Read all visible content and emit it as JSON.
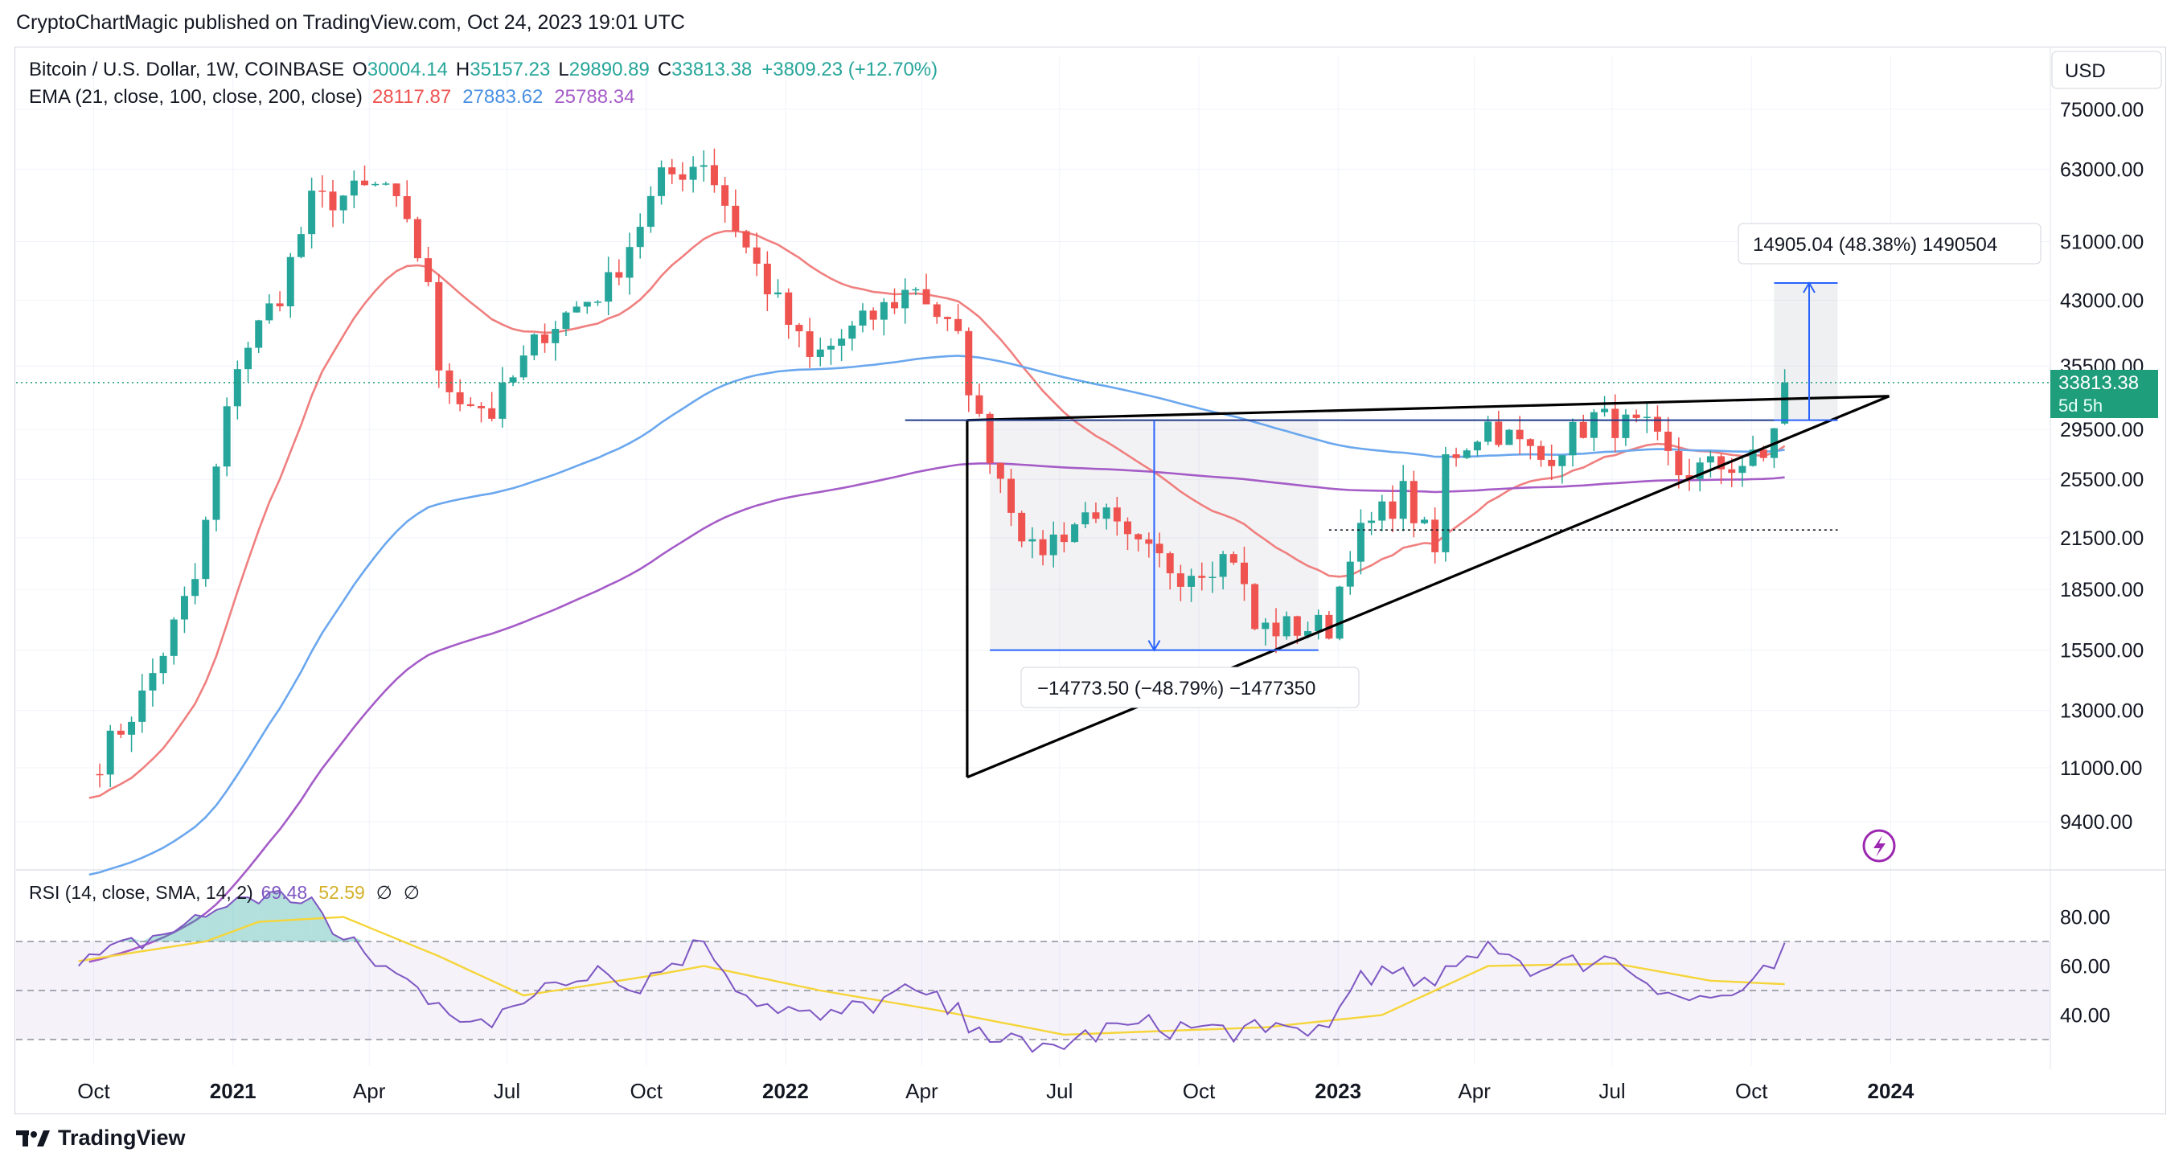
{
  "header": {
    "published_line": "CryptoChartMagic published on TradingView.com, Oct 24, 2023 19:01 UTC"
  },
  "legend": {
    "symbol": "Bitcoin / U.S. Dollar, 1W, COINBASE",
    "o_label": "O",
    "o_value": "30004.14",
    "h_label": "H",
    "h_value": "35157.23",
    "l_label": "L",
    "l_value": "29890.89",
    "c_label": "C",
    "c_value": "33813.38",
    "change": "+3809.23 (+12.70%)",
    "ema_label": "EMA (21, close, 100, close, 200, close)",
    "ema21": "28117.87",
    "ema100": "27883.62",
    "ema200": "25788.34"
  },
  "rsi_legend": {
    "label": "RSI (14, close, SMA, 14, 2)",
    "rsi": "69.48",
    "sma": "52.59",
    "extra1": "∅",
    "extra2": "∅"
  },
  "currency_button": "USD",
  "price_badge": {
    "price": "33813.38",
    "countdown": "5d 5h"
  },
  "annotations": {
    "up_measure": "14905.04 (48.38%) 1490504",
    "down_measure": "−14773.50 (−48.79%) −1477350"
  },
  "brand": "TradingView",
  "colors": {
    "up": "#26a69a",
    "down": "#ef5350",
    "ema21": "#f07f7f",
    "ema100": "#6aa7ee",
    "ema200": "#a55cc7",
    "rsi": "#7e57c2",
    "rsi_sma": "#f5d53a",
    "badge": "#1f9e7c"
  },
  "icons": {
    "flash": "lightning-icon",
    "logo": "tradingview-logo-icon"
  },
  "chart_data": [
    {
      "type": "candlestick",
      "title": "Bitcoin / U.S. Dollar, 1W, COINBASE",
      "x_axis_labels": [
        "Oct",
        "2021",
        "Apr",
        "Jul",
        "Oct",
        "2022",
        "Apr",
        "Jul",
        "Oct",
        "2023",
        "Apr",
        "Jul",
        "Oct",
        "2024"
      ],
      "y_axis_labels": [
        "75000.00",
        "63000.00",
        "51000.00",
        "43000.00",
        "35500.00",
        "29500.00",
        "25500.00",
        "21500.00",
        "18500.00",
        "15500.00",
        "13000.00",
        "11000.00",
        "9400.00"
      ],
      "y_scale": "log",
      "close_anchors": [
        {
          "x": "2020-09-28",
          "y": 10800
        },
        {
          "x": "2020-11-02",
          "y": 13500
        },
        {
          "x": "2020-12-07",
          "y": 19000
        },
        {
          "x": "2021-01-04",
          "y": 36000
        },
        {
          "x": "2021-02-01",
          "y": 44000
        },
        {
          "x": "2021-02-22",
          "y": 57000
        },
        {
          "x": "2021-04-12",
          "y": 60000
        },
        {
          "x": "2021-05-10",
          "y": 46000
        },
        {
          "x": "2021-05-17",
          "y": 34000
        },
        {
          "x": "2021-06-21",
          "y": 31000
        },
        {
          "x": "2021-07-26",
          "y": 39500
        },
        {
          "x": "2021-09-06",
          "y": 45000
        },
        {
          "x": "2021-10-11",
          "y": 61000
        },
        {
          "x": "2021-11-08",
          "y": 65000
        },
        {
          "x": "2021-12-06",
          "y": 50000
        },
        {
          "x": "2022-01-17",
          "y": 36000
        },
        {
          "x": "2022-02-28",
          "y": 41000
        },
        {
          "x": "2022-03-28",
          "y": 45000
        },
        {
          "x": "2022-04-25",
          "y": 38000
        },
        {
          "x": "2022-05-09",
          "y": 30000
        },
        {
          "x": "2022-06-13",
          "y": 20500
        },
        {
          "x": "2022-07-25",
          "y": 23500
        },
        {
          "x": "2022-08-15",
          "y": 21000
        },
        {
          "x": "2022-09-19",
          "y": 19500
        },
        {
          "x": "2022-10-24",
          "y": 20500
        },
        {
          "x": "2022-11-07",
          "y": 16500
        },
        {
          "x": "2022-12-26",
          "y": 16600
        },
        {
          "x": "2023-01-09",
          "y": 21000
        },
        {
          "x": "2023-02-13",
          "y": 24500
        },
        {
          "x": "2023-03-06",
          "y": 20500
        },
        {
          "x": "2023-03-13",
          "y": 27000
        },
        {
          "x": "2023-04-10",
          "y": 30000
        },
        {
          "x": "2023-05-15",
          "y": 27000
        },
        {
          "x": "2023-06-19",
          "y": 30500
        },
        {
          "x": "2023-07-24",
          "y": 29300
        },
        {
          "x": "2023-08-14",
          "y": 26000
        },
        {
          "x": "2023-09-11",
          "y": 26500
        },
        {
          "x": "2023-10-09",
          "y": 27000
        },
        {
          "x": "2023-10-16",
          "y": 30000
        },
        {
          "x": "2023-10-23",
          "y": 33813.38
        }
      ],
      "last_candle": {
        "open": 30004.14,
        "high": 35157.23,
        "low": 29890.89,
        "close": 33813.38
      },
      "ema_series": [
        {
          "name": "EMA 21",
          "last": 28117.87
        },
        {
          "name": "EMA 100",
          "last": 27883.62
        },
        {
          "name": "EMA 200",
          "last": 25788.34
        }
      ],
      "drawings": {
        "resistance_level": 30300,
        "dotted_level": 22000,
        "triangle": [
          {
            "x": "2022-05-01",
            "y": 30300
          },
          {
            "x": "2022-05-01",
            "y": 10700
          },
          {
            "x": "2023-12-31",
            "y": 32500
          }
        ],
        "up_measure": {
          "from": 30300,
          "to": 45200,
          "text": "14905.04 (48.38%) 1490504"
        },
        "down_measure": {
          "from": 30300,
          "to": 15500,
          "text": "−14773.50 (−48.79%) −1477350"
        }
      }
    },
    {
      "type": "line",
      "title": "RSI (14, close, SMA, 14, 2)",
      "y_axis_labels": [
        "80.00",
        "60.00",
        "40.00"
      ],
      "bands": {
        "upper": 70,
        "middle": 50,
        "lower": 30
      },
      "series": [
        {
          "name": "RSI",
          "last": 69.48,
          "anchors": [
            {
              "x": "2020-09-21",
              "y": 60
            },
            {
              "x": "2020-12-14",
              "y": 80
            },
            {
              "x": "2021-01-04",
              "y": 88
            },
            {
              "x": "2021-02-22",
              "y": 88
            },
            {
              "x": "2021-03-08",
              "y": 73
            },
            {
              "x": "2021-05-17",
              "y": 45
            },
            {
              "x": "2021-06-21",
              "y": 35
            },
            {
              "x": "2021-07-26",
              "y": 53
            },
            {
              "x": "2021-08-30",
              "y": 60
            },
            {
              "x": "2021-09-20",
              "y": 50
            },
            {
              "x": "2021-11-08",
              "y": 70
            },
            {
              "x": "2021-12-06",
              "y": 48
            },
            {
              "x": "2022-01-24",
              "y": 38
            },
            {
              "x": "2022-03-28",
              "y": 50
            },
            {
              "x": "2022-05-09",
              "y": 35
            },
            {
              "x": "2022-06-13",
              "y": 25
            },
            {
              "x": "2022-08-15",
              "y": 36
            },
            {
              "x": "2022-11-14",
              "y": 33
            },
            {
              "x": "2022-12-26",
              "y": 35
            },
            {
              "x": "2023-01-16",
              "y": 58
            },
            {
              "x": "2023-03-06",
              "y": 52
            },
            {
              "x": "2023-04-10",
              "y": 70
            },
            {
              "x": "2023-05-15",
              "y": 58
            },
            {
              "x": "2023-06-26",
              "y": 64
            },
            {
              "x": "2023-08-21",
              "y": 46
            },
            {
              "x": "2023-09-18",
              "y": 48
            },
            {
              "x": "2023-10-16",
              "y": 59
            },
            {
              "x": "2023-10-23",
              "y": 69.48
            }
          ]
        },
        {
          "name": "SMA",
          "last": 52.59,
          "anchors": [
            {
              "x": "2020-09-21",
              "y": 62
            },
            {
              "x": "2020-12-14",
              "y": 70
            },
            {
              "x": "2021-01-18",
              "y": 78
            },
            {
              "x": "2021-03-15",
              "y": 80
            },
            {
              "x": "2021-05-17",
              "y": 64
            },
            {
              "x": "2021-07-12",
              "y": 48
            },
            {
              "x": "2021-10-04",
              "y": 56
            },
            {
              "x": "2021-11-08",
              "y": 60
            },
            {
              "x": "2022-01-24",
              "y": 50
            },
            {
              "x": "2022-04-11",
              "y": 42
            },
            {
              "x": "2022-07-04",
              "y": 32
            },
            {
              "x": "2022-11-14",
              "y": 35
            },
            {
              "x": "2023-01-30",
              "y": 40
            },
            {
              "x": "2023-04-10",
              "y": 60
            },
            {
              "x": "2023-07-03",
              "y": 61
            },
            {
              "x": "2023-09-04",
              "y": 54
            },
            {
              "x": "2023-10-23",
              "y": 52.59
            }
          ]
        }
      ]
    }
  ]
}
